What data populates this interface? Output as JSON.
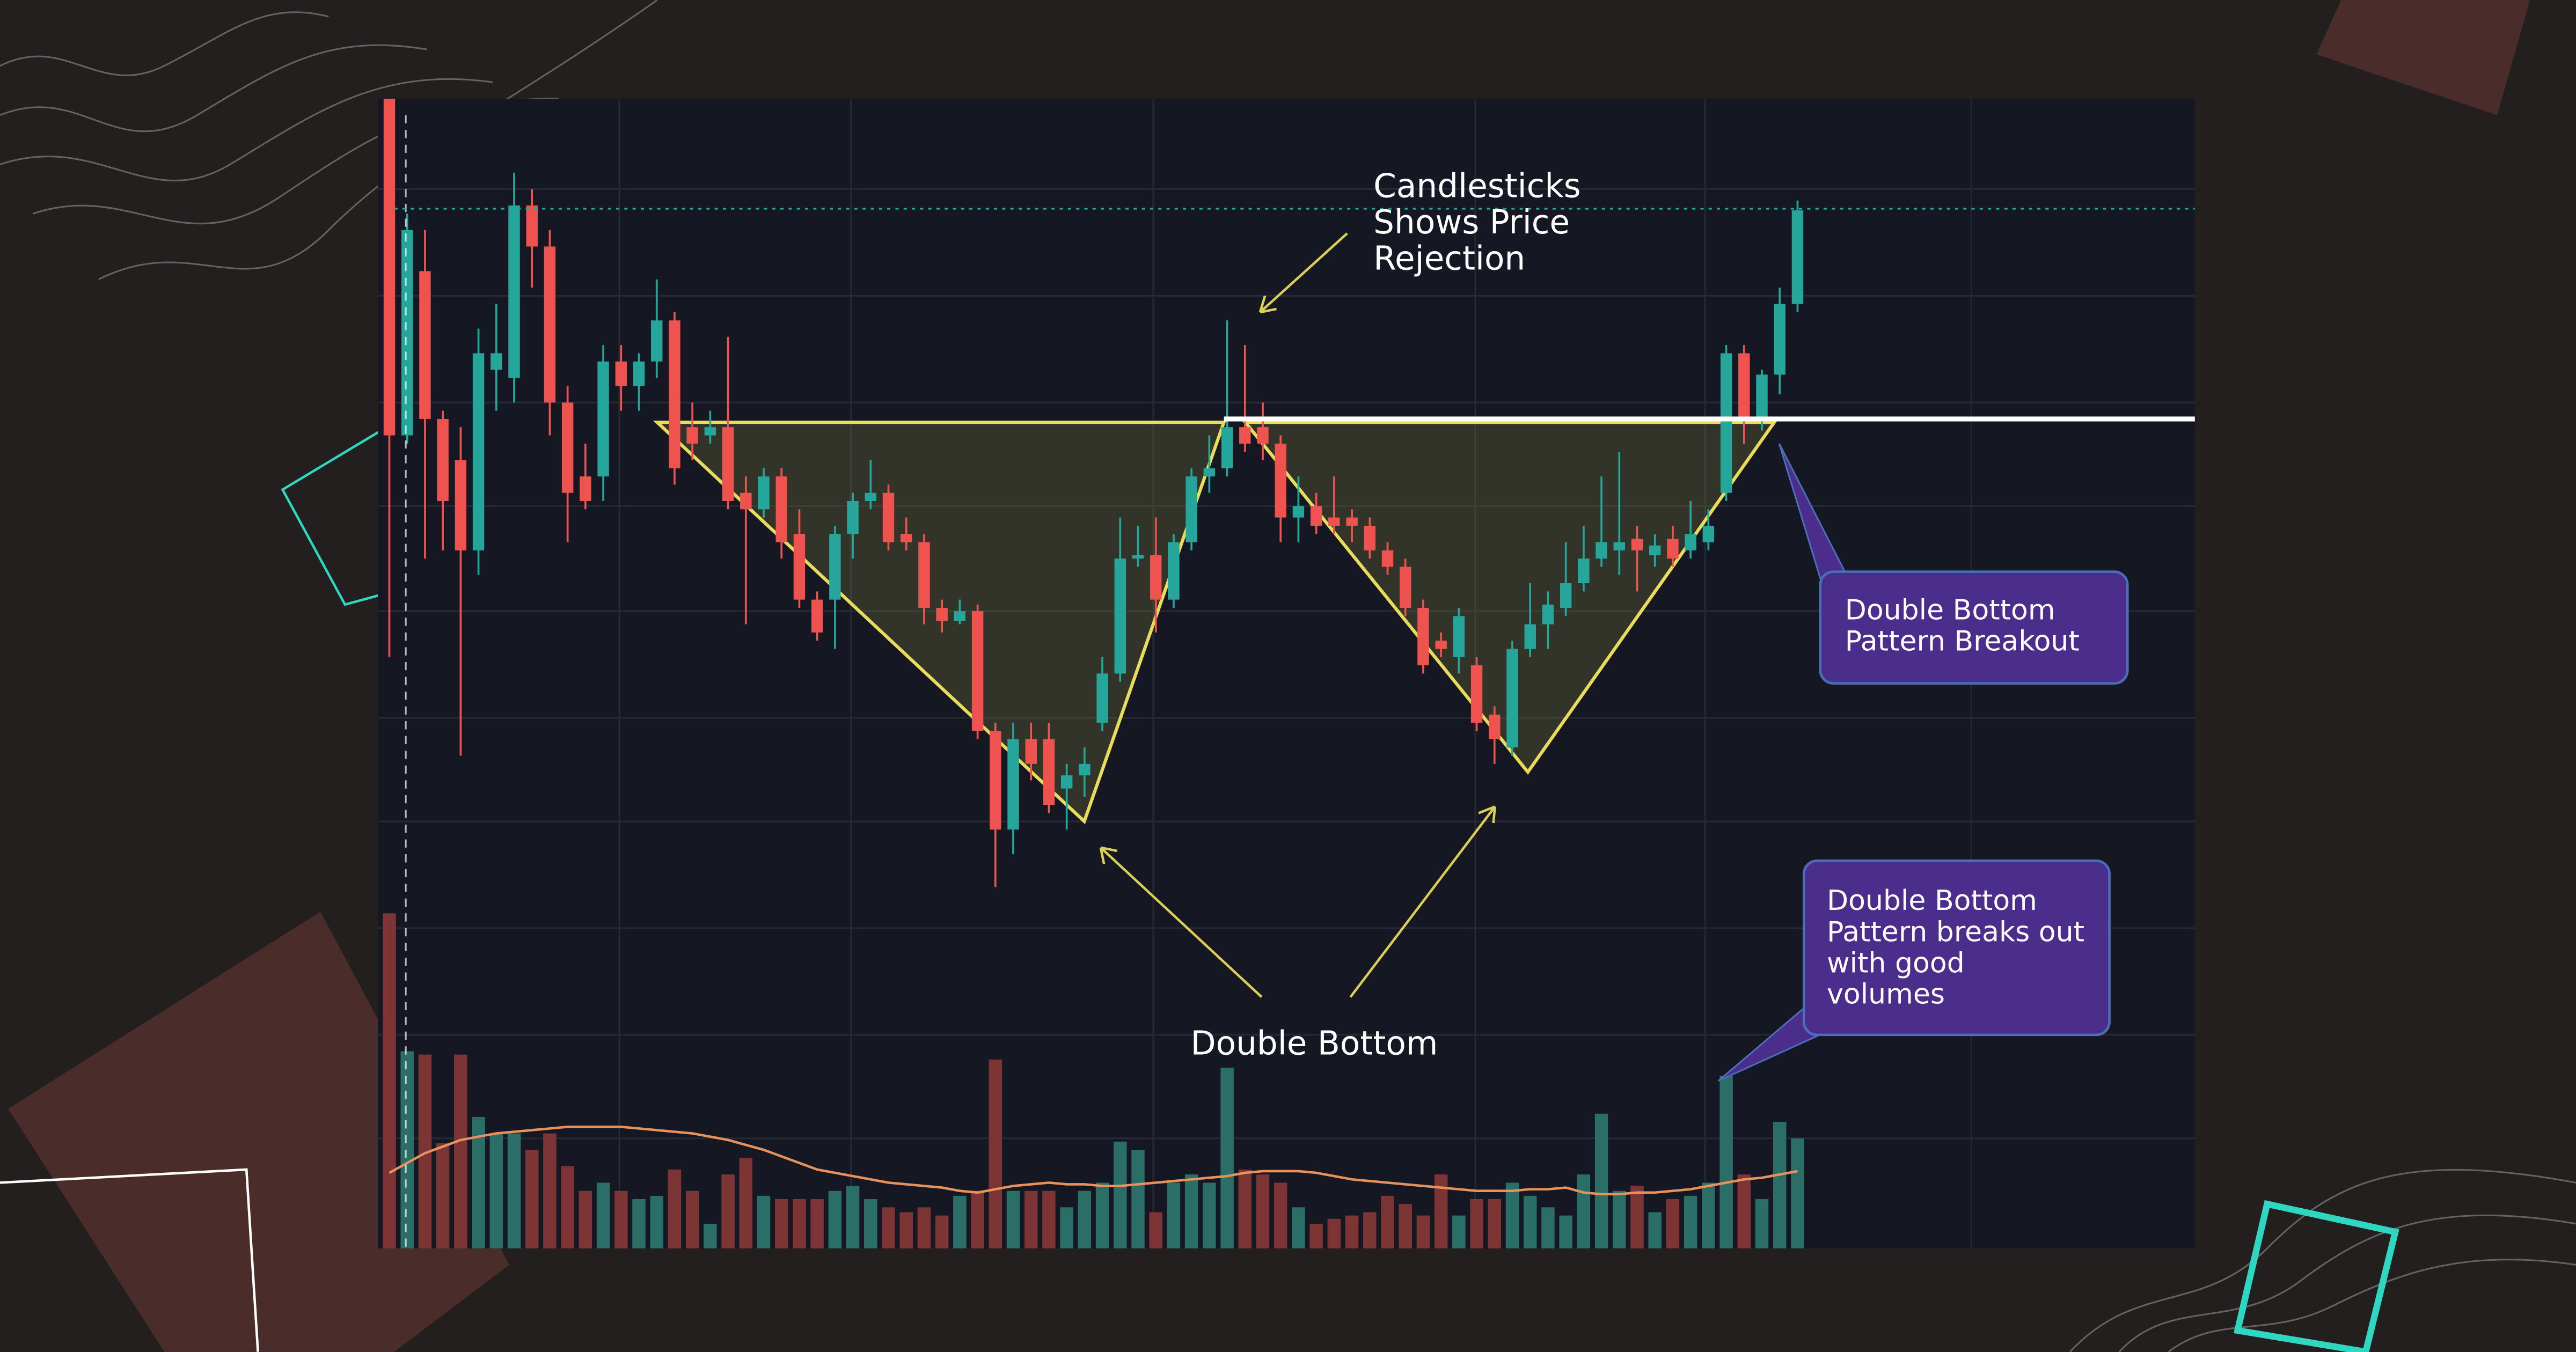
{
  "chart_data": {
    "type": "candlestick",
    "up_color": "#26a69a",
    "down_color": "#ef5350",
    "volume_up_color": "#2b6e68",
    "volume_down_color": "#7d3435",
    "ma_color": "#e8915a",
    "ylim": [
      0,
      110
    ],
    "volume_ylim": [
      0,
      110
    ],
    "open": [
      108,
      67,
      87,
      69,
      64,
      53,
      75,
      74,
      95,
      90,
      71,
      62,
      62,
      76,
      73,
      76,
      81,
      68,
      67,
      68,
      60,
      58,
      62,
      55,
      47,
      47,
      55,
      59,
      60,
      55,
      54,
      46,
      44.4,
      45.6,
      31,
      19,
      30,
      30,
      24,
      25.6,
      32,
      38,
      52,
      52.4,
      47,
      54,
      62,
      63,
      68,
      68,
      66,
      57,
      58.4,
      57,
      57,
      56,
      53,
      51,
      46,
      42,
      40,
      39,
      33,
      29,
      41,
      44,
      46,
      49,
      52,
      53,
      54.4,
      52.4,
      54.4,
      53,
      54,
      60,
      77,
      69,
      74.4,
      83
    ],
    "high": [
      108,
      94,
      92,
      70,
      68,
      80,
      83,
      99,
      97,
      92,
      73,
      66,
      78,
      78,
      77,
      86,
      82,
      71,
      70,
      79,
      62,
      63,
      63,
      58,
      48,
      56,
      60,
      64,
      61,
      57,
      55,
      47,
      47,
      46.4,
      32,
      32,
      32,
      32,
      27,
      29,
      40,
      57,
      56,
      57,
      55,
      63,
      67,
      81,
      78,
      71,
      67,
      62,
      60,
      62,
      58,
      57,
      54,
      52,
      47,
      43,
      46,
      40,
      34,
      42,
      49,
      48,
      54,
      56,
      62,
      65,
      56,
      55,
      56,
      59,
      58,
      78,
      78,
      75,
      85,
      95.6
    ],
    "low": [
      40,
      66,
      52,
      53,
      28,
      50,
      70,
      71,
      85,
      67,
      54,
      58,
      59,
      70,
      70,
      74,
      61,
      64,
      66,
      58,
      44,
      57,
      52,
      46,
      42,
      41,
      52,
      58,
      53,
      53,
      44,
      43,
      44,
      30,
      12,
      16,
      25,
      21,
      19,
      23,
      31,
      37,
      51,
      43,
      46,
      53,
      60,
      62,
      65,
      64,
      54,
      54,
      55,
      55,
      54,
      52,
      50,
      45,
      38,
      40,
      38,
      31,
      27,
      28,
      40,
      41,
      45,
      48,
      51,
      50,
      48,
      51,
      51,
      52,
      53,
      59,
      66,
      67.6,
      72,
      82
    ],
    "close": [
      67,
      92,
      69,
      59,
      53,
      77,
      77,
      95,
      90,
      71,
      60,
      59,
      76,
      73,
      76,
      81,
      63,
      66,
      68,
      59,
      58,
      62,
      54,
      47,
      43,
      55,
      59,
      60,
      54,
      54,
      46,
      44.4,
      45.6,
      31,
      19,
      30,
      27,
      22,
      25.6,
      27,
      38,
      52,
      52.4,
      47,
      54,
      62,
      63,
      68,
      66,
      66,
      57,
      58.4,
      56,
      56,
      56,
      53,
      51,
      46,
      39,
      41,
      45,
      32,
      30,
      41,
      44,
      46.4,
      49,
      52,
      54,
      54,
      53,
      53.6,
      52,
      55,
      56,
      77,
      69,
      74.4,
      83,
      94.4
    ],
    "volume": [
      102,
      60,
      59,
      32,
      59,
      40,
      35,
      35,
      30,
      35,
      25,
      17.5,
      20,
      17.5,
      15,
      16,
      24,
      17.5,
      7.5,
      22.5,
      27.5,
      16,
      15,
      15,
      15,
      17.5,
      19,
      15,
      12.5,
      11,
      12.5,
      10,
      16,
      17.5,
      57.5,
      17.5,
      17.5,
      17.5,
      12.5,
      17.5,
      20,
      32.5,
      30,
      11,
      20,
      22.5,
      20,
      55,
      24,
      22.5,
      20,
      12.5,
      7.5,
      9,
      10,
      11,
      16,
      13.5,
      10,
      22.5,
      10,
      15,
      15,
      20,
      16,
      12.5,
      10,
      22.5,
      41,
      17.5,
      19,
      11,
      15,
      16,
      20,
      52.5,
      22.5,
      15,
      38.5,
      33.5
    ],
    "volume_ma": [
      23,
      26,
      29,
      31,
      33,
      34,
      35,
      35.5,
      36,
      36.5,
      37,
      37,
      37,
      37,
      36.5,
      36,
      35.5,
      35,
      34,
      33,
      31.5,
      30,
      28,
      26,
      24,
      23,
      22,
      21,
      20,
      19.5,
      19,
      18.5,
      17.5,
      17,
      18,
      19,
      19.5,
      20,
      19.5,
      19.5,
      19,
      19,
      19.5,
      20,
      20.5,
      21,
      21.5,
      22,
      23,
      23.5,
      23.5,
      23.5,
      23,
      22,
      21,
      20.5,
      20,
      19.5,
      19,
      18.5,
      18,
      17.5,
      17.5,
      17.5,
      18,
      18,
      18.5,
      17,
      16.5,
      16.5,
      17,
      17,
      17.5,
      18,
      19,
      20,
      21,
      21.5,
      22.5,
      23.5
    ],
    "resistance_level": 69,
    "price_line": 94.6,
    "annotations": {
      "rejection": [
        "Candlesticks",
        "Shows Price",
        "Rejection"
      ],
      "double_bottom": "Double Bottom",
      "breakout": [
        "Double Bottom",
        "Pattern Breakout"
      ],
      "volume_note": [
        "Double Bottom",
        "Pattern breaks out",
        "with good",
        "volumes"
      ]
    }
  }
}
